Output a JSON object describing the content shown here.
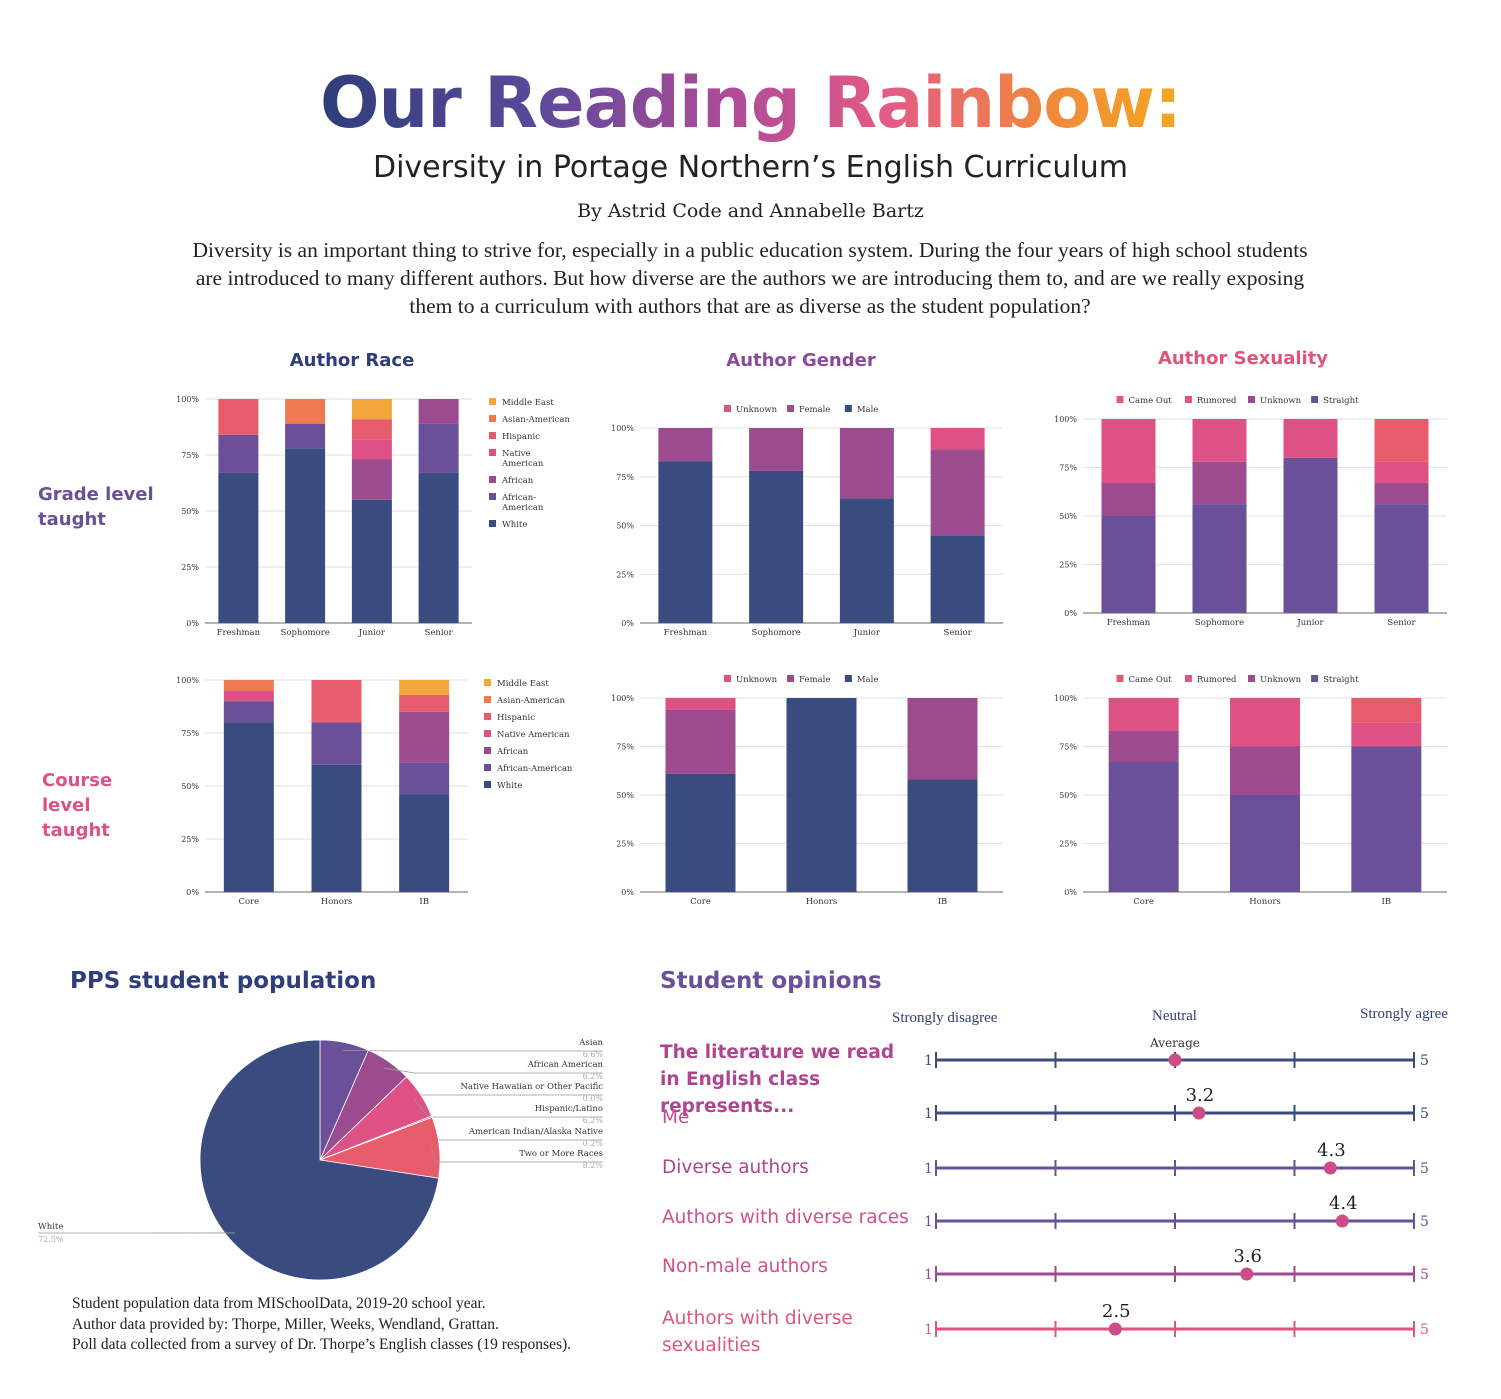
{
  "header": {
    "title": "Our Reading Rainbow:",
    "subtitle": "Diversity in Portage Northern’s English Curriculum",
    "byline": "By Astrid Code and Annabelle Bartz",
    "intro": "Diversity is an important thing to strive for, especially in a public education system. During the four years of high school students are introduced to many different authors. But how diverse are the authors we are introducing them to, and are we really exposing them to a curriculum with authors that are as diverse as the student population?"
  },
  "columns": {
    "race": "Author Race",
    "gender": "Author Gender",
    "sexuality": "Author Sexuality"
  },
  "rows": {
    "grade": "Grade level taught",
    "course": "Course level taught"
  },
  "colors": {
    "White": "#3a4b80",
    "African-American": "#6a4f99",
    "African": "#9c4b8e",
    "Native American": "#dd5185",
    "Hispanic": "#e65c6c",
    "Asian-American": "#f07a50",
    "Middle East": "#f3a73a",
    "Male": "#3a4b80",
    "Female": "#9c4b8e",
    "Unknown": "#dd5185",
    "Straight": "#6a4f99",
    "Sexuality Unknown": "#9c4b8e",
    "Rumored": "#dd5185",
    "Came Out": "#e65c6c"
  },
  "chart_data": [
    {
      "id": "race_grade",
      "type": "bar",
      "stacked": true,
      "categories": [
        "Freshman",
        "Sophomore",
        "Junior",
        "Senior"
      ],
      "yticks": [
        "0%",
        "25%",
        "50%",
        "75%",
        "100%"
      ],
      "legend_position": "right",
      "legend": [
        "Middle East",
        "Asian-American",
        "Hispanic",
        "Native American",
        "African",
        "African-American",
        "White"
      ],
      "series": [
        {
          "name": "White",
          "values": [
            67,
            78,
            55,
            67
          ]
        },
        {
          "name": "African-American",
          "values": [
            17,
            11,
            0,
            22
          ]
        },
        {
          "name": "African",
          "values": [
            0,
            0,
            18,
            11
          ]
        },
        {
          "name": "Native American",
          "values": [
            0,
            0,
            9,
            0
          ]
        },
        {
          "name": "Hispanic",
          "values": [
            16,
            0,
            9,
            0
          ]
        },
        {
          "name": "Asian-American",
          "values": [
            0,
            11,
            0,
            0
          ]
        },
        {
          "name": "Middle East",
          "values": [
            0,
            0,
            9,
            0
          ]
        }
      ]
    },
    {
      "id": "gender_grade",
      "type": "bar",
      "stacked": true,
      "categories": [
        "Freshman",
        "Sophomore",
        "Junior",
        "Senior"
      ],
      "yticks": [
        "0%",
        "25%",
        "50%",
        "75%",
        "100%"
      ],
      "legend_position": "top",
      "legend": [
        "Unknown",
        "Female",
        "Male"
      ],
      "series": [
        {
          "name": "Male",
          "values": [
            83,
            78,
            64,
            45
          ]
        },
        {
          "name": "Female",
          "values": [
            17,
            22,
            36,
            44
          ]
        },
        {
          "name": "Unknown",
          "values": [
            0,
            0,
            0,
            11
          ]
        }
      ]
    },
    {
      "id": "sexuality_grade",
      "type": "bar",
      "stacked": true,
      "categories": [
        "Freshman",
        "Sophomore",
        "Junior",
        "Senior"
      ],
      "yticks": [
        "0%",
        "25%",
        "50%",
        "75%",
        "100%"
      ],
      "legend_position": "top",
      "legend": [
        "Came Out",
        "Rumored",
        "Unknown",
        "Straight"
      ],
      "series": [
        {
          "name": "Straight",
          "values": [
            50,
            56,
            80,
            56
          ]
        },
        {
          "name": "Unknown",
          "values": [
            17,
            22,
            0,
            11
          ]
        },
        {
          "name": "Rumored",
          "values": [
            33,
            22,
            20,
            11
          ]
        },
        {
          "name": "Came Out",
          "values": [
            0,
            0,
            0,
            22
          ]
        }
      ]
    },
    {
      "id": "race_course",
      "type": "bar",
      "stacked": true,
      "categories": [
        "Core",
        "Honors",
        "IB"
      ],
      "yticks": [
        "0%",
        "25%",
        "50%",
        "75%",
        "100%"
      ],
      "legend_position": "right",
      "legend": [
        "Middle East",
        "Asian-American",
        "Hispanic",
        "Native American",
        "African",
        "African-American",
        "White"
      ],
      "series": [
        {
          "name": "White",
          "values": [
            80,
            60,
            46
          ]
        },
        {
          "name": "African-American",
          "values": [
            10,
            20,
            15
          ]
        },
        {
          "name": "African",
          "values": [
            0,
            0,
            24
          ]
        },
        {
          "name": "Native American",
          "values": [
            5,
            0,
            0
          ]
        },
        {
          "name": "Hispanic",
          "values": [
            0,
            20,
            8
          ]
        },
        {
          "name": "Asian-American",
          "values": [
            5,
            0,
            0
          ]
        },
        {
          "name": "Middle East",
          "values": [
            0,
            0,
            7
          ]
        }
      ]
    },
    {
      "id": "gender_course",
      "type": "bar",
      "stacked": true,
      "categories": [
        "Core",
        "Honors",
        "IB"
      ],
      "yticks": [
        "0%",
        "25%",
        "50%",
        "75%",
        "100%"
      ],
      "legend_position": "top",
      "legend": [
        "Unknown",
        "Female",
        "Male"
      ],
      "series": [
        {
          "name": "Male",
          "values": [
            61,
            100,
            58
          ]
        },
        {
          "name": "Female",
          "values": [
            33,
            0,
            42
          ]
        },
        {
          "name": "Unknown",
          "values": [
            6,
            0,
            0
          ]
        }
      ]
    },
    {
      "id": "sexuality_course",
      "type": "bar",
      "stacked": true,
      "categories": [
        "Core",
        "Honors",
        "IB"
      ],
      "yticks": [
        "0%",
        "25%",
        "50%",
        "75%",
        "100%"
      ],
      "legend_position": "top",
      "legend": [
        "Came Out",
        "Rumored",
        "Unknown",
        "Straight"
      ],
      "series": [
        {
          "name": "Straight",
          "values": [
            67,
            50,
            75
          ]
        },
        {
          "name": "Unknown",
          "values": [
            16,
            25,
            0
          ]
        },
        {
          "name": "Rumored",
          "values": [
            17,
            25,
            12.5
          ]
        },
        {
          "name": "Came Out",
          "values": [
            0,
            0,
            12.5
          ]
        }
      ]
    },
    {
      "id": "pps_population",
      "type": "pie",
      "title": "PPS student population",
      "slices": [
        {
          "label": "White",
          "value_label": "72.5%",
          "value": 72.5,
          "color": "#3a4b80"
        },
        {
          "label": "Asian",
          "value_label": "6.6%",
          "value": 6.6,
          "color": "#6a4f99"
        },
        {
          "label": "African American",
          "value_label": "6.2%",
          "value": 6.2,
          "color": "#9c4b8e"
        },
        {
          "label": "Native Hawaiian or Other Pacific",
          "value_label": "0.0%",
          "value": 0.0,
          "color": "#c24d8c"
        },
        {
          "label": "Hispanic/Latino",
          "value_label": "6.2%",
          "value": 6.2,
          "color": "#dd5185"
        },
        {
          "label": "American Indian/Alaska Native",
          "value_label": "0.2%",
          "value": 0.2,
          "color": "#e85a7a"
        },
        {
          "label": "Two or More Races",
          "value_label": "8.2%",
          "value": 8.2,
          "color": "#e65c6c"
        }
      ]
    },
    {
      "id": "student_opinions",
      "type": "scatter",
      "title": "Student opinions",
      "scale_labels": {
        "left": "Strongly disagree",
        "middle": "Neutral",
        "right": "Strongly agree"
      },
      "scale_min": 1,
      "scale_max": 5,
      "header_question": "The literature we read in English class represents...",
      "average_label": "Average",
      "items": [
        {
          "label": "Me",
          "value": 3.2,
          "value_label": "3.2",
          "color": "#3a4b80"
        },
        {
          "label": "Diverse authors",
          "value": 4.3,
          "value_label": "4.3",
          "color": "#6a4f99"
        },
        {
          "label": "Authors with diverse races",
          "value": 4.4,
          "value_label": "4.4",
          "color": "#6a4f99"
        },
        {
          "label": "Non-male authors",
          "value": 3.6,
          "value_label": "3.6",
          "color": "#9c4b8e"
        },
        {
          "label": "Authors with diverse sexualities",
          "value": 2.5,
          "value_label": "2.5",
          "color": "#e0557a"
        }
      ],
      "header_value": 3.0
    }
  ],
  "sources": {
    "line1": "Student population data from MISchoolData, 2019-20 school year.",
    "line2": "Author data provided by: Thorpe, Miller, Weeks, Wendland, Grattan.",
    "line3": "Poll data collected from a survey of Dr. Thorpe’s English classes (19 responses)."
  }
}
